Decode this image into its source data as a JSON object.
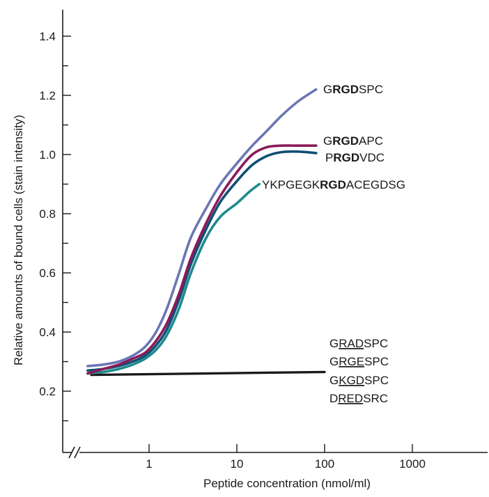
{
  "chart_data": {
    "type": "line",
    "title": "",
    "xlabel": "Peptide concentration (nmol/ml)",
    "ylabel": "Relative amounts of bound cells (stain intensity)",
    "x_scale": "log",
    "xlim": [
      0.135,
      500
    ],
    "ylim": [
      0.05,
      1.5
    ],
    "x_ticks": [
      1,
      10,
      100,
      1000
    ],
    "x_tick_labels": [
      "1",
      "10",
      "100",
      "1000"
    ],
    "y_ticks": [
      0.2,
      0.4,
      0.6,
      0.8,
      1.0,
      1.2,
      1.4
    ],
    "y_tick_labels": [
      "0.2",
      "0.4",
      "0.6",
      "0.8",
      "1.0",
      "1.2",
      "1.4"
    ],
    "axis_break_mark": "//",
    "grid": false,
    "legend": "inline labels at line ends",
    "series": [
      {
        "name": "GRGDSPC",
        "name_parts": [
          {
            "text": "G",
            "style": "normal"
          },
          {
            "text": "RGD",
            "style": "bold"
          },
          {
            "text": "SPC",
            "style": "normal"
          }
        ],
        "color": "#6a77b5",
        "x": [
          0.2,
          0.3,
          0.45,
          0.65,
          0.9,
          1.2,
          1.6,
          2.2,
          3.0,
          4.5,
          6.5,
          10,
          15,
          22,
          32,
          50,
          80
        ],
        "y": [
          0.285,
          0.29,
          0.3,
          0.32,
          0.35,
          0.4,
          0.48,
          0.6,
          0.72,
          0.82,
          0.9,
          0.97,
          1.03,
          1.08,
          1.13,
          1.18,
          1.22
        ]
      },
      {
        "name": "GRGDAPC",
        "name_parts": [
          {
            "text": "G",
            "style": "normal"
          },
          {
            "text": "RGD",
            "style": "bold"
          },
          {
            "text": "APC",
            "style": "normal"
          }
        ],
        "color": "#8b1a5a",
        "x": [
          0.2,
          0.3,
          0.45,
          0.65,
          0.9,
          1.2,
          1.6,
          2.2,
          3.0,
          4.5,
          6.5,
          10,
          15,
          22,
          32,
          50,
          80
        ],
        "y": [
          0.26,
          0.275,
          0.29,
          0.31,
          0.33,
          0.37,
          0.43,
          0.53,
          0.65,
          0.77,
          0.86,
          0.94,
          1.0,
          1.025,
          1.03,
          1.03,
          1.03
        ]
      },
      {
        "name": "PRGDVDC",
        "name_parts": [
          {
            "text": "P",
            "style": "normal"
          },
          {
            "text": "RGD",
            "style": "bold"
          },
          {
            "text": "VDC",
            "style": "normal"
          }
        ],
        "color": "#0f4f74",
        "x": [
          0.2,
          0.3,
          0.45,
          0.65,
          0.9,
          1.2,
          1.6,
          2.2,
          3.0,
          4.5,
          6.5,
          10,
          15,
          22,
          32,
          50,
          80
        ],
        "y": [
          0.27,
          0.275,
          0.285,
          0.3,
          0.32,
          0.355,
          0.41,
          0.51,
          0.63,
          0.75,
          0.84,
          0.91,
          0.965,
          0.995,
          1.008,
          1.01,
          1.005
        ]
      },
      {
        "name": "YKPGEGKRGDACEGDSG",
        "name_parts": [
          {
            "text": "YKPGEGK",
            "style": "normal"
          },
          {
            "text": "RGD",
            "style": "bold"
          },
          {
            "text": "ACEGDSG",
            "style": "normal"
          }
        ],
        "color": "#1e8a8e",
        "x": [
          0.2,
          0.3,
          0.45,
          0.65,
          0.9,
          1.2,
          1.6,
          2.2,
          3.0,
          4.5,
          6.5,
          10,
          14,
          18
        ],
        "y": [
          0.26,
          0.265,
          0.275,
          0.29,
          0.31,
          0.34,
          0.39,
          0.48,
          0.6,
          0.72,
          0.79,
          0.835,
          0.875,
          0.9
        ]
      },
      {
        "name": "GRADSPC / GRGESPC / GKGDSPC / DREDSRC",
        "color": "#1a1a1a",
        "x": [
          0.22,
          100
        ],
        "y": [
          0.255,
          0.265
        ]
      }
    ],
    "control_labels": [
      {
        "text": "GRADSPC",
        "parts": [
          {
            "text": "G",
            "style": "normal"
          },
          {
            "text": "RAD",
            "style": "underline"
          },
          {
            "text": "SPC",
            "style": "normal"
          }
        ]
      },
      {
        "text": "GRGESPC",
        "parts": [
          {
            "text": "G",
            "style": "normal"
          },
          {
            "text": "RGE",
            "style": "underline"
          },
          {
            "text": "SPC",
            "style": "normal"
          }
        ]
      },
      {
        "text": "GKGDSPC",
        "parts": [
          {
            "text": "G",
            "style": "normal"
          },
          {
            "text": "KGD",
            "style": "underline"
          },
          {
            "text": "SPC",
            "style": "normal"
          }
        ]
      },
      {
        "text": "DREDSRC",
        "parts": [
          {
            "text": "D",
            "style": "normal"
          },
          {
            "text": "RED",
            "style": "underline"
          },
          {
            "text": "SRC",
            "style": "normal"
          }
        ]
      }
    ]
  }
}
